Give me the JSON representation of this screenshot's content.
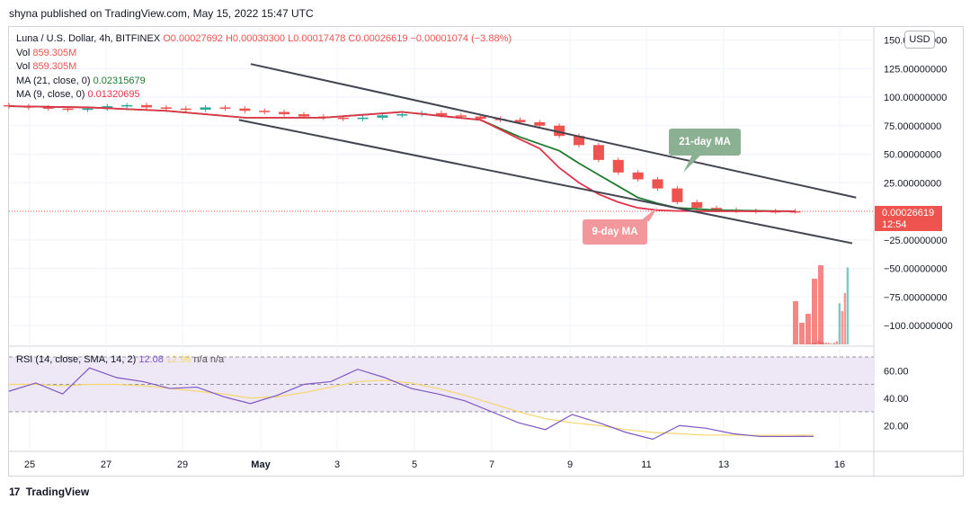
{
  "header": {
    "publisher_text": "shyna published on TradingView.com, May 15, 2022 15:47 UTC"
  },
  "legend": {
    "symbol": "Luna / U.S. Dollar, 4h, BITFINEX",
    "ohlc": "O0.00027692  H0.00030300  L0.00017478  C0.00026619  −0.00001074 (−3.88%)",
    "vol1_label": "Vol",
    "vol1_value": "859.305M",
    "vol2_label": "Vol",
    "vol2_value": "859.305M",
    "ma21_label": "MA (21, close, 0)",
    "ma21_value": "0.02315679",
    "ma9_label": "MA (9, close, 0)",
    "ma9_value": "0.01320695"
  },
  "currency_badge": "USD",
  "last_price": {
    "value": "0.00026619",
    "countdown": "12:54"
  },
  "callouts": {
    "ma21": "21-day MA",
    "ma9": "9-day MA"
  },
  "rsi_legend": {
    "label": "RSI (14, close, SMA, 14, 2)",
    "rsi_value": "12.08",
    "sma_value": "12.96",
    "na_text": "n/a  n/a"
  },
  "footer": {
    "brand": "TradingView",
    "logo_glyph": "17"
  },
  "colors": {
    "up": "#26a69a",
    "down": "#ef5350",
    "ma21": "#1e7b2d",
    "ma9": "#e3344a",
    "rsi": "#7e57c2",
    "rsi_sma": "#f5d76e",
    "trendline": "#434651",
    "rsi_band": "#ede7f6"
  },
  "chart_data": [
    {
      "type": "candlestick",
      "title": "Luna / U.S. Dollar, 4h, BITFINEX",
      "x_ticks": [
        "25",
        "27",
        "29",
        "May",
        "3",
        "5",
        "7",
        "9",
        "11",
        "13",
        "16"
      ],
      "y_ticks": [
        "150.00000000",
        "125.00000000",
        "100.00000000",
        "75.00000000",
        "50.00000000",
        "25.00000000",
        "0.00026619",
        "−25.00000000",
        "−50.00000000",
        "−75.00000000",
        "−100.00000000"
      ],
      "ylim": [
        -125,
        160
      ],
      "grid": true,
      "series": [
        {
          "name": "MA (21, close, 0)",
          "x": [
            0,
            4,
            8,
            12,
            16,
            20,
            24,
            26,
            28,
            29,
            30,
            31,
            32,
            33,
            34,
            36,
            40
          ],
          "values": [
            92,
            91,
            88,
            82,
            82,
            87,
            80,
            65,
            53,
            42,
            32,
            22,
            12,
            7,
            3,
            1,
            0.02
          ]
        },
        {
          "name": "MA (9, close, 0)",
          "x": [
            0,
            4,
            8,
            12,
            16,
            20,
            24,
            26,
            27,
            28,
            29,
            30,
            31,
            32,
            33,
            34,
            36,
            40
          ],
          "values": [
            92,
            91,
            88,
            82,
            82,
            87,
            80,
            63,
            55,
            38,
            25,
            15,
            8,
            3,
            1,
            0.3,
            0.05,
            0.01
          ]
        }
      ],
      "candles_close": [
        92,
        91,
        90,
        89,
        90,
        92,
        93,
        91,
        90,
        89,
        91,
        90,
        88,
        87,
        85,
        83,
        82,
        81,
        82,
        84,
        85,
        86,
        84,
        83,
        81,
        80,
        78,
        75,
        66,
        58,
        45,
        34,
        28,
        20,
        8,
        3,
        1.2,
        0.4,
        0.1,
        0.02,
        0.0003
      ],
      "trendlines": [
        {
          "from": [
            12.3,
            129
          ],
          "to": [
            43.1,
            12
          ]
        },
        {
          "from": [
            11.7,
            80
          ],
          "to": [
            42.9,
            -28
          ]
        }
      ],
      "volume": [
        0,
        0,
        0,
        0,
        0,
        0,
        0,
        0,
        0,
        0,
        0,
        0,
        0,
        0,
        0,
        0,
        0,
        0,
        0,
        0,
        0,
        0,
        0,
        0,
        0,
        0,
        0,
        0,
        0,
        0,
        0.5,
        1,
        1.5,
        3,
        3.5,
        7,
        5,
        4.5,
        3.5,
        3,
        2,
        3,
        6,
        80,
        65,
        100,
        150
      ]
    },
    {
      "type": "line",
      "title": "RSI (14, close, SMA, 14, 2)",
      "y_ticks": [
        "60.00",
        "40.00",
        "20.00"
      ],
      "bands": [
        70,
        50,
        30
      ],
      "series": [
        {
          "name": "RSI",
          "values": [
            45,
            51,
            43,
            62,
            55,
            52,
            47,
            48,
            41,
            36,
            42,
            50,
            52,
            61,
            55,
            47,
            43,
            38,
            30,
            22,
            17,
            28,
            22,
            15,
            10,
            20,
            18,
            14,
            12,
            12,
            12.08
          ]
        },
        {
          "name": "SMA",
          "values": [
            50,
            50,
            49,
            50,
            50,
            49,
            47,
            45,
            43,
            40,
            41,
            44,
            48,
            52,
            53,
            51,
            47,
            42,
            36,
            30,
            25,
            22,
            20,
            17,
            15,
            14,
            13,
            13,
            12.8,
            12.9,
            12.96
          ]
        }
      ]
    }
  ]
}
